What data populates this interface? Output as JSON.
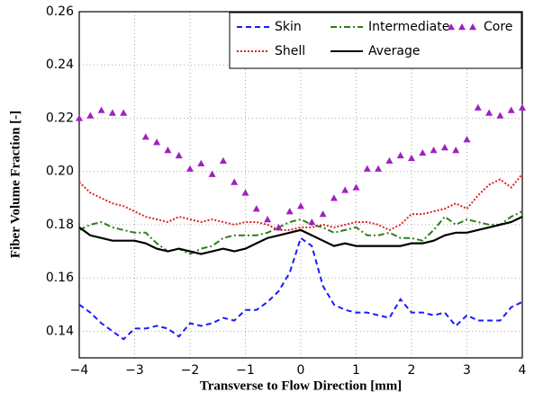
{
  "chart_data": {
    "type": "line",
    "xlabel": "Transverse to Flow Direction [mm]",
    "ylabel": "Fiber Volume Fraction [-]",
    "x": [
      -4,
      -3.8,
      -3.6,
      -3.4,
      -3.2,
      -3,
      -2.8,
      -2.6,
      -2.4,
      -2.2,
      -2,
      -1.8,
      -1.6,
      -1.4,
      -1.2,
      -1,
      -0.8,
      -0.6,
      -0.4,
      -0.2,
      0,
      0.2,
      0.4,
      0.6,
      0.8,
      1,
      1.2,
      1.4,
      1.6,
      1.8,
      2,
      2.2,
      2.4,
      2.6,
      2.8,
      3,
      3.2,
      3.4,
      3.6,
      3.8,
      4
    ],
    "series": [
      {
        "name": "Skin",
        "color": "#1a1aff",
        "style": "dashed",
        "values": [
          0.15,
          0.147,
          0.143,
          0.14,
          0.137,
          0.141,
          0.141,
          0.142,
          0.141,
          0.138,
          0.143,
          0.142,
          0.143,
          0.145,
          0.144,
          0.148,
          0.148,
          0.151,
          0.155,
          0.162,
          0.175,
          0.172,
          0.157,
          0.15,
          0.148,
          0.147,
          0.147,
          0.146,
          0.145,
          0.152,
          0.147,
          0.147,
          0.146,
          0.147,
          0.142,
          0.146,
          0.144,
          0.144,
          0.144,
          0.149,
          0.151
        ]
      },
      {
        "name": "Intermediate",
        "color": "#2e7d1a",
        "style": "dashdot",
        "values": [
          0.178,
          0.18,
          0.181,
          0.179,
          0.178,
          0.177,
          0.177,
          0.173,
          0.17,
          0.171,
          0.169,
          0.171,
          0.172,
          0.175,
          0.176,
          0.176,
          0.176,
          0.177,
          0.179,
          0.181,
          0.182,
          0.18,
          0.179,
          0.177,
          0.178,
          0.179,
          0.176,
          0.176,
          0.177,
          0.175,
          0.175,
          0.174,
          0.178,
          0.183,
          0.18,
          0.182,
          0.181,
          0.18,
          0.18,
          0.183,
          0.185
        ]
      },
      {
        "name": "Core",
        "color": "#a020c0",
        "style": "markers",
        "values": [
          0.22,
          0.221,
          0.223,
          0.222,
          0.222,
          null,
          0.213,
          0.211,
          0.208,
          0.206,
          0.201,
          0.203,
          0.199,
          0.204,
          0.196,
          0.192,
          0.186,
          0.182,
          0.179,
          0.185,
          0.187,
          0.181,
          0.184,
          0.19,
          0.193,
          0.194,
          0.201,
          0.201,
          0.204,
          0.206,
          0.205,
          0.207,
          0.208,
          0.209,
          0.208,
          0.212,
          0.224,
          0.222,
          0.221,
          0.223,
          0.224
        ]
      },
      {
        "name": "Shell",
        "color": "#e02020",
        "style": "dotted",
        "values": [
          0.196,
          0.192,
          0.19,
          0.188,
          0.187,
          0.185,
          0.183,
          0.182,
          0.181,
          0.183,
          0.182,
          0.181,
          0.182,
          0.181,
          0.18,
          0.181,
          0.181,
          0.18,
          0.178,
          0.178,
          0.179,
          0.179,
          0.18,
          0.179,
          0.18,
          0.181,
          0.181,
          0.18,
          0.178,
          0.18,
          0.184,
          0.184,
          0.185,
          0.186,
          0.188,
          0.186,
          0.191,
          0.195,
          0.197,
          0.194,
          0.199
        ]
      },
      {
        "name": "Average",
        "color": "#000000",
        "style": "solid",
        "values": [
          0.179,
          0.176,
          0.175,
          0.174,
          0.174,
          0.174,
          0.173,
          0.171,
          0.17,
          0.171,
          0.17,
          0.169,
          0.17,
          0.171,
          0.17,
          0.171,
          0.173,
          0.175,
          0.176,
          0.177,
          0.178,
          0.176,
          0.174,
          0.172,
          0.173,
          0.172,
          0.172,
          0.172,
          0.172,
          0.172,
          0.173,
          0.173,
          0.174,
          0.176,
          0.177,
          0.177,
          0.178,
          0.179,
          0.18,
          0.181,
          0.183
        ]
      }
    ],
    "xlim": [
      -4,
      4
    ],
    "xticks": [
      {
        "value": -4,
        "label": "−4"
      },
      {
        "value": -3,
        "label": "−3"
      },
      {
        "value": -2,
        "label": "−2"
      },
      {
        "value": -1,
        "label": "−1"
      },
      0,
      1,
      2,
      3,
      4
    ],
    "ylim": [
      0.13,
      0.26
    ],
    "yticks": [
      0.14,
      0.16,
      0.18,
      {
        "value": 0.2,
        "label": "0.20"
      },
      0.22,
      0.24,
      0.26
    ],
    "grid": true,
    "legend": "upper right"
  }
}
